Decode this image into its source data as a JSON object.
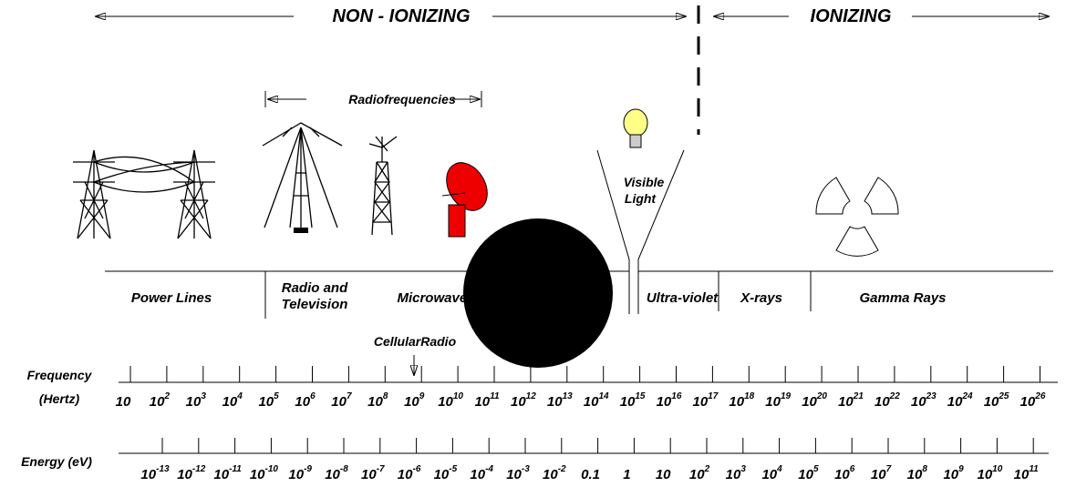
{
  "header": {
    "left": "NON - IONIZING",
    "right": "IONIZING"
  },
  "radiofrequencies": "Radiofrequencies",
  "visible_light": [
    "Visible",
    "Light"
  ],
  "bands": [
    {
      "label": [
        "Power Lines"
      ]
    },
    {
      "label": [
        "Radio and",
        "Television"
      ]
    },
    {
      "label": [
        "Microwaves"
      ]
    },
    {
      "label": [
        "Ultra-violet"
      ]
    },
    {
      "label": [
        "X-rays"
      ]
    },
    {
      "label": [
        "Gamma Rays"
      ]
    }
  ],
  "cellular": "CellularRadio",
  "frequency": {
    "label": [
      "Frequency",
      "(Hertz)"
    ],
    "ticks": [
      {
        "base": "10"
      },
      {
        "base": "10",
        "exp": "2"
      },
      {
        "base": "10",
        "exp": "3"
      },
      {
        "base": "10",
        "exp": "4"
      },
      {
        "base": "10",
        "exp": "5"
      },
      {
        "base": "10",
        "exp": "6"
      },
      {
        "base": "10",
        "exp": "7"
      },
      {
        "base": "10",
        "exp": "8"
      },
      {
        "base": "10",
        "exp": "9"
      },
      {
        "base": "10",
        "exp": "10"
      },
      {
        "base": "10",
        "exp": "11"
      },
      {
        "base": "10",
        "exp": "12"
      },
      {
        "base": "10",
        "exp": "13"
      },
      {
        "base": "10",
        "exp": "14"
      },
      {
        "base": "10",
        "exp": "15"
      },
      {
        "base": "10",
        "exp": "16"
      },
      {
        "base": "10",
        "exp": "17"
      },
      {
        "base": "10",
        "exp": "18"
      },
      {
        "base": "10",
        "exp": "19"
      },
      {
        "base": "10",
        "exp": "20"
      },
      {
        "base": "10",
        "exp": "21"
      },
      {
        "base": "10",
        "exp": "22"
      },
      {
        "base": "10",
        "exp": "23"
      },
      {
        "base": "10",
        "exp": "24"
      },
      {
        "base": "10",
        "exp": "25"
      },
      {
        "base": "10",
        "exp": "26"
      }
    ]
  },
  "energy": {
    "label": "Energy (eV)",
    "ticks": [
      {
        "base": "10",
        "exp": "-13"
      },
      {
        "base": "10",
        "exp": "-12"
      },
      {
        "base": "10",
        "exp": "-11"
      },
      {
        "base": "10",
        "exp": "-10"
      },
      {
        "base": "10",
        "exp": "-9"
      },
      {
        "base": "10",
        "exp": "-8"
      },
      {
        "base": "10",
        "exp": "-7"
      },
      {
        "base": "10",
        "exp": "-6"
      },
      {
        "base": "10",
        "exp": "-5"
      },
      {
        "base": "10",
        "exp": "-4"
      },
      {
        "base": "10",
        "exp": "-3"
      },
      {
        "base": "10",
        "exp": "-2"
      },
      {
        "base": "0.1"
      },
      {
        "base": "1"
      },
      {
        "base": "10"
      },
      {
        "base": "10",
        "exp": "2"
      },
      {
        "base": "10",
        "exp": "3"
      },
      {
        "base": "10",
        "exp": "4"
      },
      {
        "base": "10",
        "exp": "5"
      },
      {
        "base": "10",
        "exp": "6"
      },
      {
        "base": "10",
        "exp": "7"
      },
      {
        "base": "10",
        "exp": "8"
      },
      {
        "base": "10",
        "exp": "9"
      },
      {
        "base": "10",
        "exp": "10"
      },
      {
        "base": "10",
        "exp": "11"
      }
    ]
  }
}
